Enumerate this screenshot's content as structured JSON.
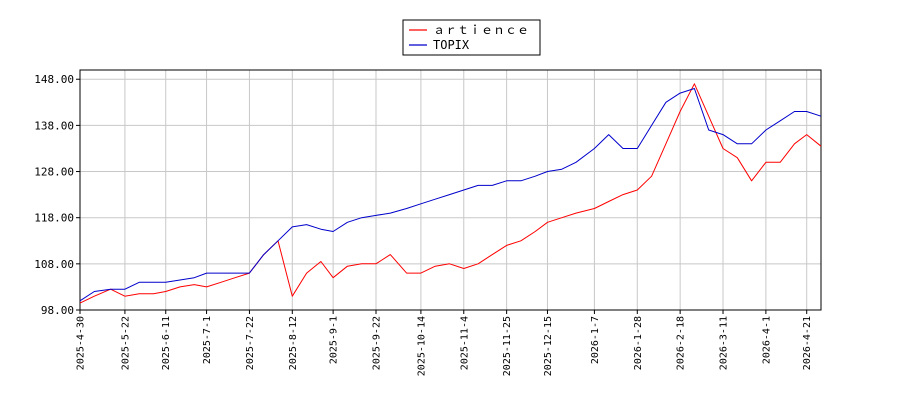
{
  "chart_data": {
    "type": "line",
    "title": "",
    "xlabel": "",
    "ylabel": "",
    "ylim": [
      98,
      150
    ],
    "y_ticks": [
      "98.00",
      "108.00",
      "118.00",
      "128.00",
      "138.00",
      "148.00"
    ],
    "x_ticks": [
      "2025-4-30",
      "2025-5-22",
      "2025-6-11",
      "2025-7-1",
      "2025-7-22",
      "2025-8-12",
      "2025-9-1",
      "2025-9-22",
      "2025-10-14",
      "2025-11-4",
      "2025-11-25",
      "2025-12-15",
      "2026-1-7",
      "2026-1-28",
      "2026-2-18",
      "2026-3-11",
      "2026-4-1",
      "2026-4-21"
    ],
    "grid": true,
    "legend_position": "top-center",
    "x": [
      "2025-4-30",
      "2025-5-7",
      "2025-5-15",
      "2025-5-22",
      "2025-5-29",
      "2025-6-5",
      "2025-6-11",
      "2025-6-18",
      "2025-6-25",
      "2025-7-1",
      "2025-7-8",
      "2025-7-15",
      "2025-7-22",
      "2025-7-29",
      "2025-8-5",
      "2025-8-12",
      "2025-8-19",
      "2025-8-26",
      "2025-9-1",
      "2025-9-8",
      "2025-9-15",
      "2025-9-22",
      "2025-9-29",
      "2025-10-7",
      "2025-10-14",
      "2025-10-21",
      "2025-10-28",
      "2025-11-4",
      "2025-11-11",
      "2025-11-18",
      "2025-11-25",
      "2025-12-2",
      "2025-12-9",
      "2025-12-15",
      "2025-12-22",
      "2025-12-29",
      "2026-1-7",
      "2026-1-14",
      "2026-1-21",
      "2026-1-28",
      "2026-2-4",
      "2026-2-11",
      "2026-2-18",
      "2026-2-25",
      "2026-3-4",
      "2026-3-11",
      "2026-3-18",
      "2026-3-25",
      "2026-4-1",
      "2026-4-8",
      "2026-4-15",
      "2026-4-21",
      "2026-4-28"
    ],
    "series": [
      {
        "name": "ａｒｔｉｅｎｃｅ",
        "color": "#ff0000",
        "values": [
          99.5,
          101,
          102.5,
          101,
          101.5,
          101.5,
          102,
          103,
          103.5,
          103,
          104,
          105,
          106,
          110,
          113,
          101,
          106,
          108.5,
          105,
          107.5,
          108,
          108,
          110,
          106,
          106,
          107.5,
          108,
          107,
          108,
          110,
          112,
          113,
          115,
          117,
          118,
          119,
          120,
          121.5,
          123,
          124,
          127,
          134,
          141,
          147,
          140,
          133,
          131,
          126,
          130,
          130,
          134,
          136,
          133.5
        ]
      },
      {
        "name": "TOPIX",
        "color": "#0000cc",
        "values": [
          100,
          102,
          102.5,
          102.5,
          104,
          104,
          104,
          104.5,
          105,
          106,
          106,
          106,
          106,
          110,
          113,
          116,
          116.5,
          115.5,
          115,
          117,
          118,
          118.5,
          119,
          120,
          121,
          122,
          123,
          124,
          125,
          125,
          126,
          126,
          127,
          128,
          128.5,
          130,
          133,
          136,
          133,
          133,
          138,
          143,
          145,
          146,
          137,
          136,
          134,
          134,
          137,
          139,
          141,
          141,
          140
        ]
      }
    ]
  }
}
